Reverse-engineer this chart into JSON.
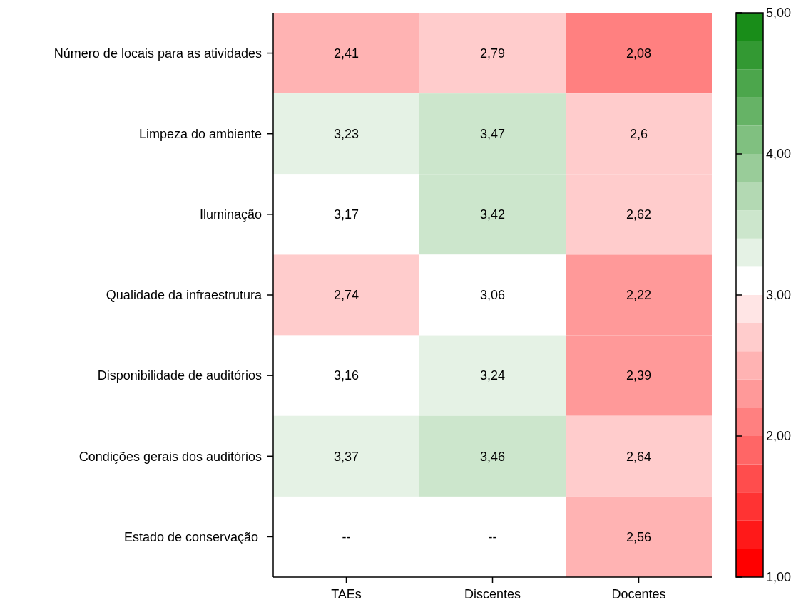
{
  "chart_data": {
    "type": "heatmap",
    "categories": [
      "TAEs",
      "Discentes",
      "Docentes"
    ],
    "y_categories": [
      "Número de locais para as atividades",
      "Limpeza do ambiente",
      "Iluminação",
      "Qualidade da infraestrutura",
      "Disponibilidade de auditórios",
      "Condições gerais dos auditórios",
      "Estado de conservação "
    ],
    "cells": [
      [
        2.41,
        2.79,
        2.08
      ],
      [
        3.23,
        3.47,
        2.6
      ],
      [
        3.17,
        3.42,
        2.62
      ],
      [
        2.74,
        3.06,
        2.22
      ],
      [
        3.16,
        3.24,
        2.39
      ],
      [
        3.37,
        3.46,
        2.64
      ],
      [
        null,
        null,
        2.56
      ]
    ],
    "cell_labels": [
      [
        "2,41",
        "2,79",
        "2,08"
      ],
      [
        "3,23",
        "3,47",
        "2,6"
      ],
      [
        "3,17",
        "3,42",
        "2,62"
      ],
      [
        "2,74",
        "3,06",
        "2,22"
      ],
      [
        "3,16",
        "3,24",
        "2,39"
      ],
      [
        "3,37",
        "3,46",
        "2,64"
      ],
      [
        "--",
        "--",
        "2,56"
      ]
    ],
    "clim": [
      1,
      5
    ],
    "cticks": [
      {
        "value": 1,
        "label": "1,00"
      },
      {
        "value": 2,
        "label": "2,00"
      },
      {
        "value": 3,
        "label": "3,00"
      },
      {
        "value": 4,
        "label": "4,00"
      },
      {
        "value": 5,
        "label": "5,00"
      }
    ]
  }
}
